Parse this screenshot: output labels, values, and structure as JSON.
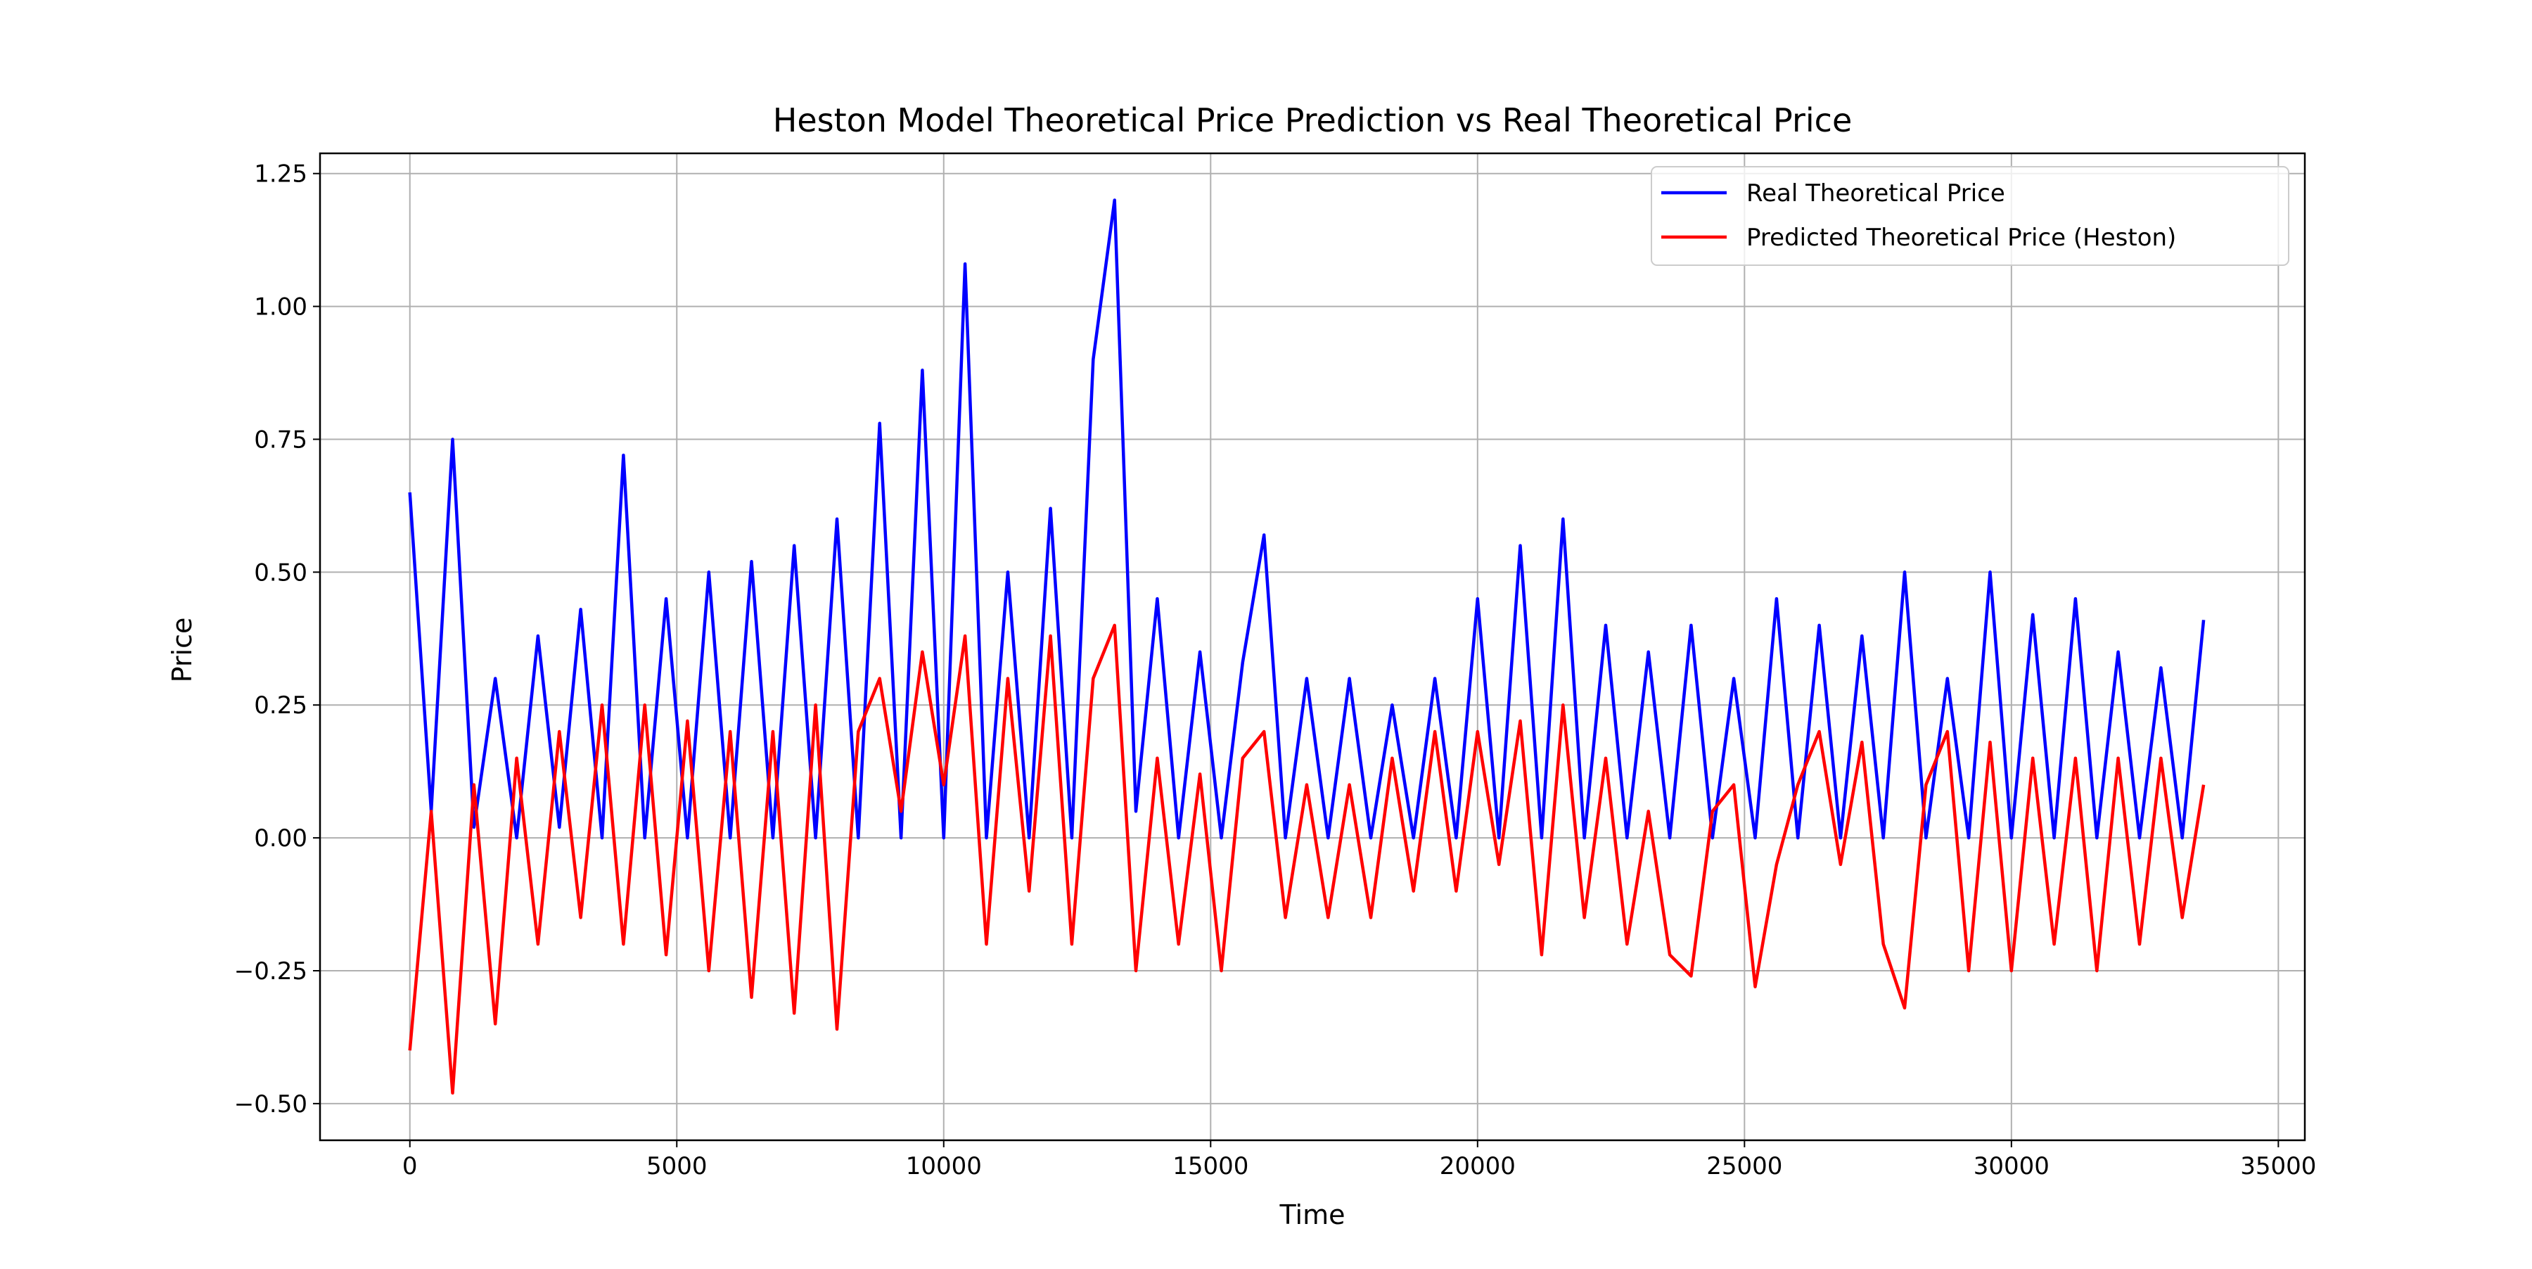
{
  "chart_data": {
    "type": "line",
    "title": "Heston Model Theoretical Price Prediction vs Real Theoretical Price",
    "x_label": "Time",
    "y_label": "Price",
    "x": [
      0,
      400,
      800,
      1200,
      1600,
      2000,
      2400,
      2800,
      3200,
      3600,
      4000,
      4400,
      4800,
      5200,
      5600,
      6000,
      6400,
      6800,
      7200,
      7600,
      8000,
      8400,
      8800,
      9200,
      9600,
      10000,
      10400,
      10800,
      11200,
      11600,
      12000,
      12400,
      12800,
      13200,
      13600,
      14000,
      14400,
      14800,
      15200,
      15600,
      16000,
      16400,
      16800,
      17200,
      17600,
      18000,
      18400,
      18800,
      19200,
      19600,
      20000,
      20400,
      20800,
      21200,
      21600,
      22000,
      22400,
      22800,
      23200,
      23600,
      24000,
      24400,
      24800,
      25200,
      25600,
      26000,
      26400,
      26800,
      27200,
      27600,
      28000,
      28400,
      28800,
      29200,
      29600,
      30000,
      30400,
      30800,
      31200,
      31600,
      32000,
      32400,
      32800,
      33200,
      33600
    ],
    "series": [
      {
        "name": "Real Theoretical Price",
        "color": "#0000ff",
        "values": [
          0.65,
          0.05,
          0.75,
          0.02,
          0.3,
          0.0,
          0.38,
          0.02,
          0.43,
          0.0,
          0.72,
          0.0,
          0.45,
          0.0,
          0.5,
          0.0,
          0.52,
          0.0,
          0.55,
          0.0,
          0.6,
          0.0,
          0.78,
          0.0,
          0.88,
          0.0,
          1.08,
          0.0,
          0.5,
          0.0,
          0.62,
          0.0,
          0.9,
          1.2,
          0.05,
          0.45,
          0.0,
          0.35,
          0.0,
          0.33,
          0.57,
          0.0,
          0.3,
          0.0,
          0.3,
          0.0,
          0.25,
          0.0,
          0.3,
          0.0,
          0.45,
          0.0,
          0.55,
          0.0,
          0.6,
          0.0,
          0.4,
          0.0,
          0.35,
          0.0,
          0.4,
          0.0,
          0.3,
          0.0,
          0.45,
          0.0,
          0.4,
          0.0,
          0.38,
          0.0,
          0.5,
          0.0,
          0.3,
          0.0,
          0.5,
          0.0,
          0.42,
          0.0,
          0.45,
          0.0,
          0.35,
          0.0,
          0.32,
          0.0,
          0.41
        ]
      },
      {
        "name": "Predicted Theoretical Price (Heston)",
        "color": "#ff0000",
        "values": [
          -0.4,
          0.05,
          -0.48,
          0.1,
          -0.35,
          0.15,
          -0.2,
          0.2,
          -0.15,
          0.25,
          -0.2,
          0.25,
          -0.22,
          0.22,
          -0.25,
          0.2,
          -0.3,
          0.2,
          -0.33,
          0.25,
          -0.36,
          0.2,
          0.3,
          0.05,
          0.35,
          0.1,
          0.38,
          -0.2,
          0.3,
          -0.1,
          0.38,
          -0.2,
          0.3,
          0.4,
          -0.25,
          0.15,
          -0.2,
          0.12,
          -0.25,
          0.15,
          0.2,
          -0.15,
          0.1,
          -0.15,
          0.1,
          -0.15,
          0.15,
          -0.1,
          0.2,
          -0.1,
          0.2,
          -0.05,
          0.22,
          -0.22,
          0.25,
          -0.15,
          0.15,
          -0.2,
          0.05,
          -0.22,
          -0.26,
          0.05,
          0.1,
          -0.28,
          -0.05,
          0.1,
          0.2,
          -0.05,
          0.18,
          -0.2,
          -0.32,
          0.1,
          0.2,
          -0.25,
          0.18,
          -0.25,
          0.15,
          -0.2,
          0.15,
          -0.25,
          0.15,
          -0.2,
          0.15,
          -0.15,
          0.1
        ]
      }
    ],
    "xlim": [
      -1683,
      35496
    ],
    "xticks": [
      0,
      5000,
      10000,
      15000,
      20000,
      25000,
      30000,
      35000
    ],
    "ylim": [
      -0.569,
      1.288
    ],
    "yticks": [
      {
        "value": -0.5,
        "label": "−0.50"
      },
      {
        "value": -0.25,
        "label": "−0.25"
      },
      {
        "value": 0,
        "label": "0.00"
      },
      0.25,
      {
        "value": 0.5,
        "label": "0.50"
      },
      0.75,
      {
        "value": 1,
        "label": "1.00"
      },
      1.25
    ],
    "grid": true,
    "legend": "upper right"
  }
}
